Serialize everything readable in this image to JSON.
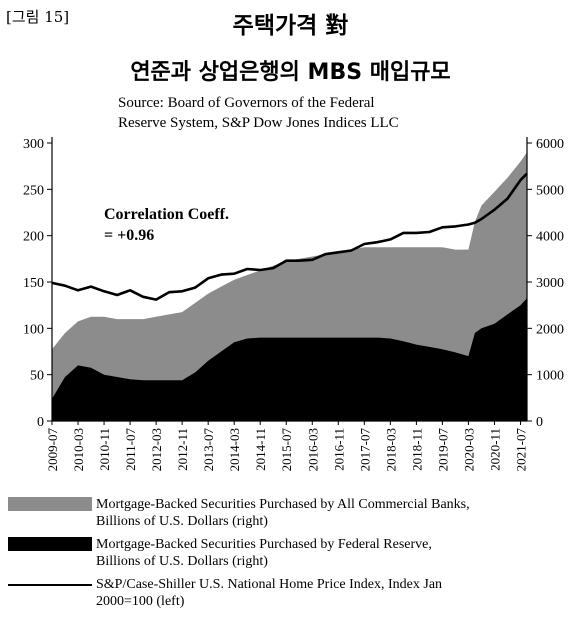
{
  "figure_number": "[그림 15]",
  "title_line1": "주택가격 對",
  "title_line2": "연준과 상업은행의 MBS 매입규모",
  "source_lines": [
    "Source: Board of Governors of the Federal",
    "Reserve System, S&P Dow Jones Indices LLC"
  ],
  "annotation_lines": [
    "Correlation Coeff.",
    "= +0.96"
  ],
  "colors": {
    "commercial_banks": "#8c8c8c",
    "federal_reserve": "#000000",
    "price_index_line": "#000000"
  },
  "legend": [
    {
      "swatch": "fill-gray",
      "lines": [
        "Mortgage-Backed Securities Purchased by All Commercial Banks,",
        "Billions of U.S. Dollars (right)"
      ]
    },
    {
      "swatch": "fill-black",
      "lines": [
        "Mortgage-Backed Securities Purchased by Federal Reserve,",
        "Billions of U.S. Dollars (right)"
      ]
    },
    {
      "swatch": "line-black",
      "lines": [
        "S&P/Case-Shiller U.S. National Home Price Index, Index Jan",
        "2000=100 (left)"
      ]
    }
  ],
  "chart_data": {
    "type": "area",
    "x_tick_labels": [
      "2009-07",
      "2010-03",
      "2010-11",
      "2011-07",
      "2012-03",
      "2012-11",
      "2013-07",
      "2014-03",
      "2014-11",
      "2015-07",
      "2016-03",
      "2016-11",
      "2017-07",
      "2018-03",
      "2018-11",
      "2019-07",
      "2020-03",
      "2020-11",
      "2021-07"
    ],
    "left_axis": {
      "ylim": [
        0,
        300
      ],
      "ticks": [
        "0",
        "50",
        "100",
        "150",
        "200",
        "250",
        "300"
      ]
    },
    "right_axis": {
      "ylim": [
        0,
        6000
      ],
      "ticks": [
        "0",
        "1000",
        "2000",
        "3000",
        "4000",
        "5000",
        "6000"
      ]
    },
    "grid": false,
    "series": [
      {
        "name": "Mortgage-Backed Securities Purchased by All Commercial Banks, Billions of U.S. Dollars (right)",
        "axis": "right",
        "style": "area",
        "x": [
          "2009-07",
          "2009-11",
          "2010-03",
          "2010-07",
          "2010-11",
          "2011-03",
          "2011-07",
          "2011-11",
          "2012-03",
          "2012-07",
          "2012-11",
          "2013-03",
          "2013-07",
          "2013-11",
          "2014-03",
          "2014-07",
          "2014-11",
          "2015-03",
          "2015-07",
          "2015-11",
          "2016-03",
          "2016-07",
          "2016-11",
          "2017-03",
          "2017-07",
          "2017-11",
          "2018-03",
          "2018-07",
          "2018-11",
          "2019-03",
          "2019-07",
          "2019-11",
          "2020-03",
          "2020-05",
          "2020-07",
          "2020-11",
          "2021-03",
          "2021-07",
          "2021-09"
        ],
        "values": [
          1550,
          1900,
          2150,
          2250,
          2250,
          2200,
          2200,
          2200,
          2250,
          2300,
          2350,
          2550,
          2750,
          2900,
          3050,
          3150,
          3250,
          3350,
          3450,
          3500,
          3550,
          3600,
          3650,
          3700,
          3750,
          3750,
          3750,
          3750,
          3750,
          3750,
          3750,
          3700,
          3700,
          4300,
          4650,
          4950,
          5250,
          5600,
          5800
        ]
      },
      {
        "name": "Mortgage-Backed Securities Purchased by Federal Reserve, Billions of U.S. Dollars (right)",
        "axis": "right",
        "style": "area",
        "x": [
          "2009-07",
          "2009-11",
          "2010-03",
          "2010-07",
          "2010-11",
          "2011-03",
          "2011-07",
          "2011-11",
          "2012-03",
          "2012-07",
          "2012-11",
          "2013-03",
          "2013-07",
          "2013-11",
          "2014-03",
          "2014-07",
          "2014-11",
          "2015-03",
          "2015-07",
          "2015-11",
          "2016-03",
          "2016-07",
          "2016-11",
          "2017-03",
          "2017-07",
          "2017-11",
          "2018-03",
          "2018-07",
          "2018-11",
          "2019-03",
          "2019-07",
          "2019-11",
          "2020-03",
          "2020-05",
          "2020-07",
          "2020-11",
          "2021-03",
          "2021-07",
          "2021-09"
        ],
        "values": [
          480,
          950,
          1200,
          1150,
          1000,
          950,
          900,
          880,
          880,
          880,
          880,
          1050,
          1300,
          1500,
          1700,
          1780,
          1800,
          1800,
          1800,
          1800,
          1800,
          1800,
          1800,
          1800,
          1800,
          1800,
          1780,
          1720,
          1650,
          1600,
          1550,
          1480,
          1400,
          1900,
          2000,
          2100,
          2300,
          2500,
          2650
        ]
      },
      {
        "name": "S&P/Case-Shiller U.S. National Home Price Index, Index Jan 2000=100 (left)",
        "axis": "left",
        "style": "line",
        "x": [
          "2009-07",
          "2009-11",
          "2010-03",
          "2010-07",
          "2010-11",
          "2011-03",
          "2011-07",
          "2011-11",
          "2012-03",
          "2012-07",
          "2012-11",
          "2013-03",
          "2013-07",
          "2013-11",
          "2014-03",
          "2014-07",
          "2014-11",
          "2015-03",
          "2015-07",
          "2015-11",
          "2016-03",
          "2016-07",
          "2016-11",
          "2017-03",
          "2017-07",
          "2017-11",
          "2018-03",
          "2018-07",
          "2018-11",
          "2019-03",
          "2019-07",
          "2019-11",
          "2020-03",
          "2020-05",
          "2020-07",
          "2020-11",
          "2021-03",
          "2021-07",
          "2021-09"
        ],
        "values": [
          149,
          146,
          141,
          145,
          140,
          136,
          141,
          134,
          131,
          139,
          140,
          144,
          154,
          158,
          159,
          164,
          163,
          165,
          173,
          173,
          174,
          180,
          182,
          184,
          191,
          193,
          196,
          203,
          203,
          204,
          209,
          210,
          212,
          214,
          218,
          228,
          240,
          260,
          267
        ]
      }
    ]
  }
}
